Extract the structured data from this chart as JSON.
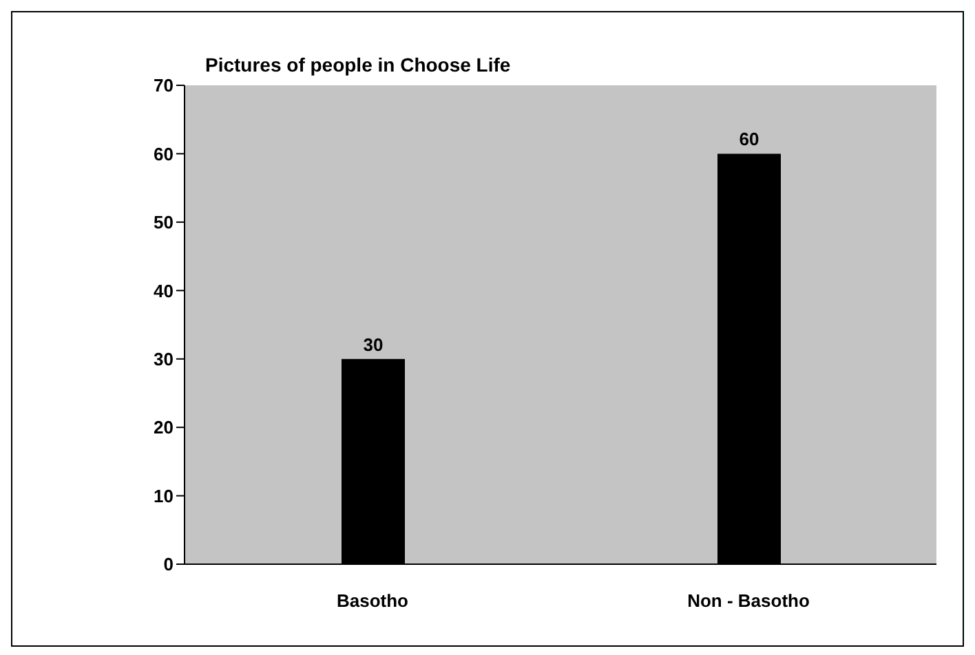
{
  "chart_data": {
    "type": "bar",
    "title": "Pictures of people in Choose Life",
    "categories": [
      "Basotho",
      "Non - Basotho"
    ],
    "values": [
      30,
      60
    ],
    "color": "#000000",
    "ylim": [
      0,
      70
    ],
    "yticks": [
      0,
      10,
      20,
      30,
      40,
      50,
      60,
      70
    ],
    "grid": false,
    "data_labels": true
  }
}
